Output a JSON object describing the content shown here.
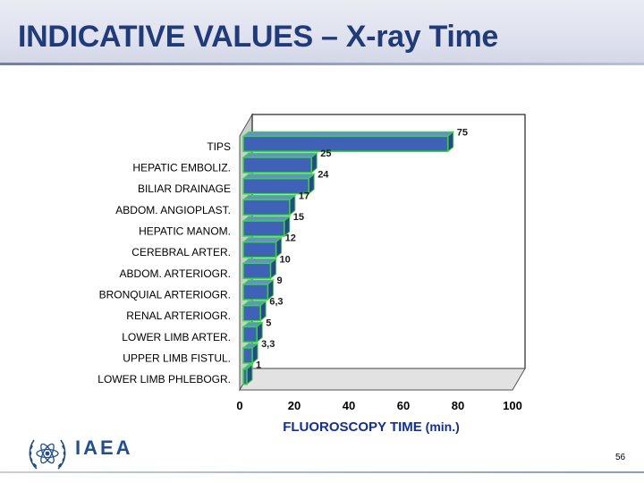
{
  "slide": {
    "title": "INDICATIVE VALUES – X-ray Time",
    "logo_text": "IAEA",
    "page_number": "56"
  },
  "colors": {
    "title": "#1f3b79",
    "bar_fill": "#3f61b8",
    "bar_edge": "#2de02d",
    "axis_title": "#0f2f9e"
  },
  "icons": {
    "logo": "iaea-atom-laurel-emblem"
  },
  "chart_data": {
    "type": "bar",
    "orientation": "horizontal",
    "categories": [
      "TIPS",
      "HEPATIC EMBOLIZ.",
      "BILIAR DRAINAGE",
      "ABDOM. ANGIOPLAST.",
      "HEPATIC MANOM.",
      "CEREBRAL ARTER.",
      "ABDOM. ARTERIOGR.",
      "BRONQUIAL ARTERIOGR.",
      "RENAL ARTERIOGR.",
      "LOWER LIMB ARTER.",
      "UPPER LIMB FISTUL.",
      "LOWER LIMB PHLEBOGR."
    ],
    "values": [
      75,
      25,
      24,
      17,
      15,
      12,
      10,
      9,
      6.3,
      5,
      3.3,
      1
    ],
    "value_labels": [
      "75",
      "25",
      "24",
      "17",
      "15",
      "12",
      "10",
      "9",
      "6,3",
      "5",
      "3,3",
      "1"
    ],
    "xlabel_main": "FLUOROSCOPY TIME",
    "xlabel_unit": " (min.)",
    "xlim": [
      0,
      100
    ],
    "xticks": [
      "0",
      "20",
      "40",
      "60",
      "80",
      "100"
    ],
    "grid": false,
    "legend": "none",
    "style": "3d-bars"
  }
}
